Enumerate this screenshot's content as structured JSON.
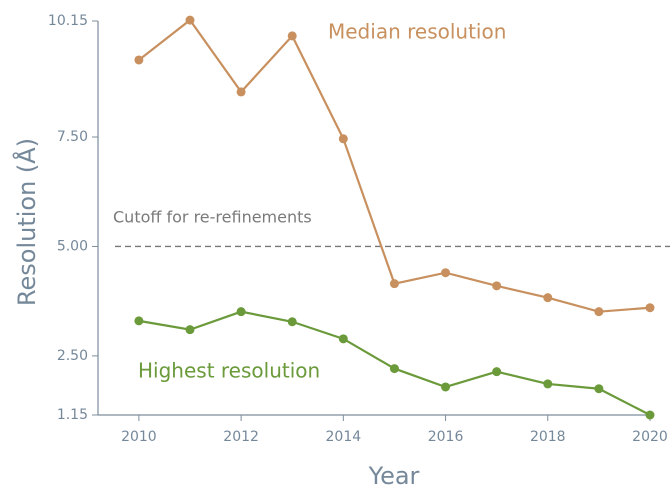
{
  "chart_data": {
    "type": "line",
    "xlabel": "Year",
    "ylabel": "Resolution (Å)",
    "x": [
      2010,
      2011,
      2012,
      2013,
      2014,
      2015,
      2016,
      2017,
      2018,
      2019,
      2020
    ],
    "series": [
      {
        "name": "Median resolution",
        "color": "#c8905e",
        "values": [
          9.26,
          10.17,
          8.53,
          9.81,
          7.46,
          4.15,
          4.4,
          4.1,
          3.83,
          3.51,
          3.6
        ]
      },
      {
        "name": "Highest resolution",
        "color": "#6a9a3a",
        "values": [
          3.3,
          3.1,
          3.51,
          3.28,
          2.89,
          2.21,
          1.79,
          2.14,
          1.86,
          1.75,
          1.15
        ]
      }
    ],
    "xlim": [
      2009.2,
      2020
    ],
    "xticks": [
      2010,
      2012,
      2014,
      2016,
      2018,
      2020
    ],
    "ylim": [
      1.15,
      10.15
    ],
    "yticks": [
      {
        "value": 1.15,
        "label": "1.15"
      },
      {
        "value": 2.5,
        "label": "2.50"
      },
      {
        "value": 5,
        "label": "5.00"
      },
      {
        "value": 7.5,
        "label": "7.50"
      },
      {
        "value": 10.15,
        "label": "10.15"
      }
    ],
    "cutoff": {
      "text": "Cutoff for re-refinements",
      "value": 5
    },
    "grid": false
  }
}
